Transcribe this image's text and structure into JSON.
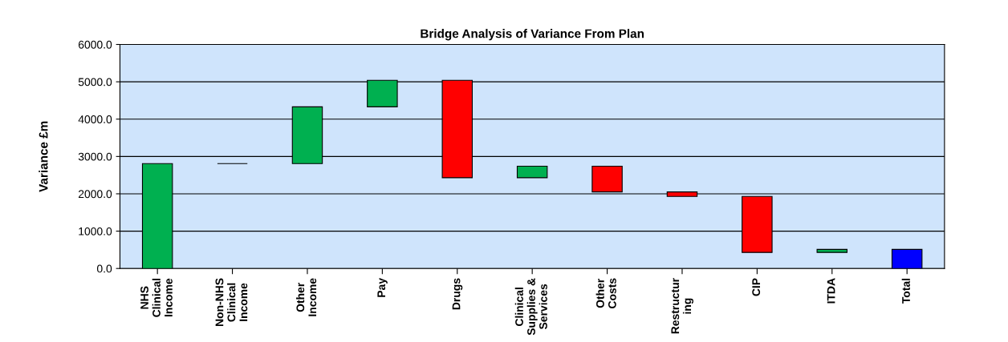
{
  "chart_data": {
    "type": "bar",
    "title": "Bridge Analysis of Variance From Plan",
    "ylabel": "Variance £m",
    "categories": [
      "NHS\nClinical\nIncome",
      "Non-NHS\nClinical\nIncome",
      "Other\nIncome",
      "Pay",
      "Drugs",
      "Clinical\nSupplies &\nServices",
      "Other\nCosts",
      "Restructur\ning",
      "CIP",
      "ITDA",
      "Total"
    ],
    "base": [
      0,
      2810,
      2810,
      4330,
      5040,
      2430,
      2740,
      2050,
      1930,
      430,
      0
    ],
    "values": [
      2810,
      0,
      1520,
      710,
      -2610,
      310,
      -690,
      -120,
      -1500,
      80,
      510
    ],
    "colors": [
      "#00b050",
      "#000000",
      "#00b050",
      "#00b050",
      "#ff0000",
      "#00b050",
      "#ff0000",
      "#ff0000",
      "#ff0000",
      "#00b050",
      "#0000ff"
    ],
    "ylim": [
      0,
      6000
    ],
    "yticks": [
      {
        "value": 0,
        "label": "0.0"
      },
      {
        "value": 1000,
        "label": "1000.0"
      },
      {
        "value": 2000,
        "label": "2000.0"
      },
      {
        "value": 3000,
        "label": "3000.0"
      },
      {
        "value": 4000,
        "label": "4000.0"
      },
      {
        "value": 5000,
        "label": "5000.0"
      },
      {
        "value": 6000,
        "label": "6000.0"
      }
    ],
    "grid": "y",
    "legend": false
  }
}
